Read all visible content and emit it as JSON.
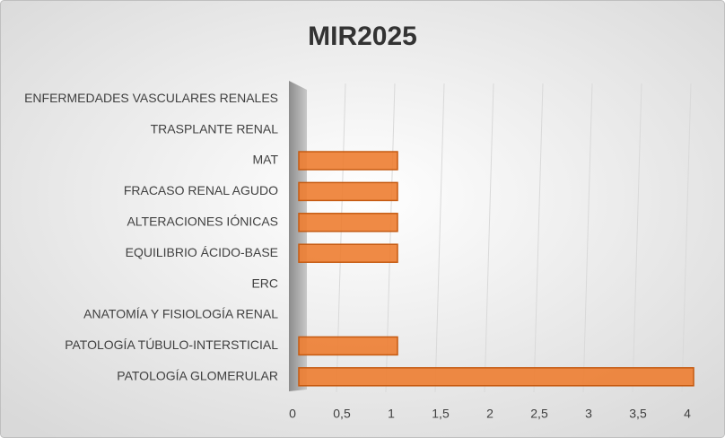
{
  "chart_data": {
    "type": "bar",
    "orientation": "horizontal",
    "title": "MIR2025",
    "categories": [
      "ENFERMEDADES VASCULARES RENALES",
      "TRASPLANTE RENAL",
      "MAT",
      "FRACASO RENAL AGUDO",
      "ALTERACIONES IÓNICAS",
      "EQUILIBRIO ÁCIDO-BASE",
      "ERC",
      "ANATOMÍA Y FISIOLOGÍA RENAL",
      "PATOLOGÍA TÚBULO-INTERSTICIAL",
      "PATOLOGÍA GLOMERULAR"
    ],
    "values": [
      0,
      0,
      1,
      1,
      1,
      1,
      0,
      0,
      1,
      4
    ],
    "color": "#ed7d31",
    "xlim": [
      0,
      4
    ],
    "xticks": [
      0,
      {
        "value": 0.5,
        "label": "0,5"
      },
      1,
      {
        "value": 1.5,
        "label": "1,5"
      },
      2,
      {
        "value": 2.5,
        "label": "2,5"
      },
      3,
      {
        "value": 3.5,
        "label": "3,5"
      },
      4
    ],
    "grid": true
  }
}
